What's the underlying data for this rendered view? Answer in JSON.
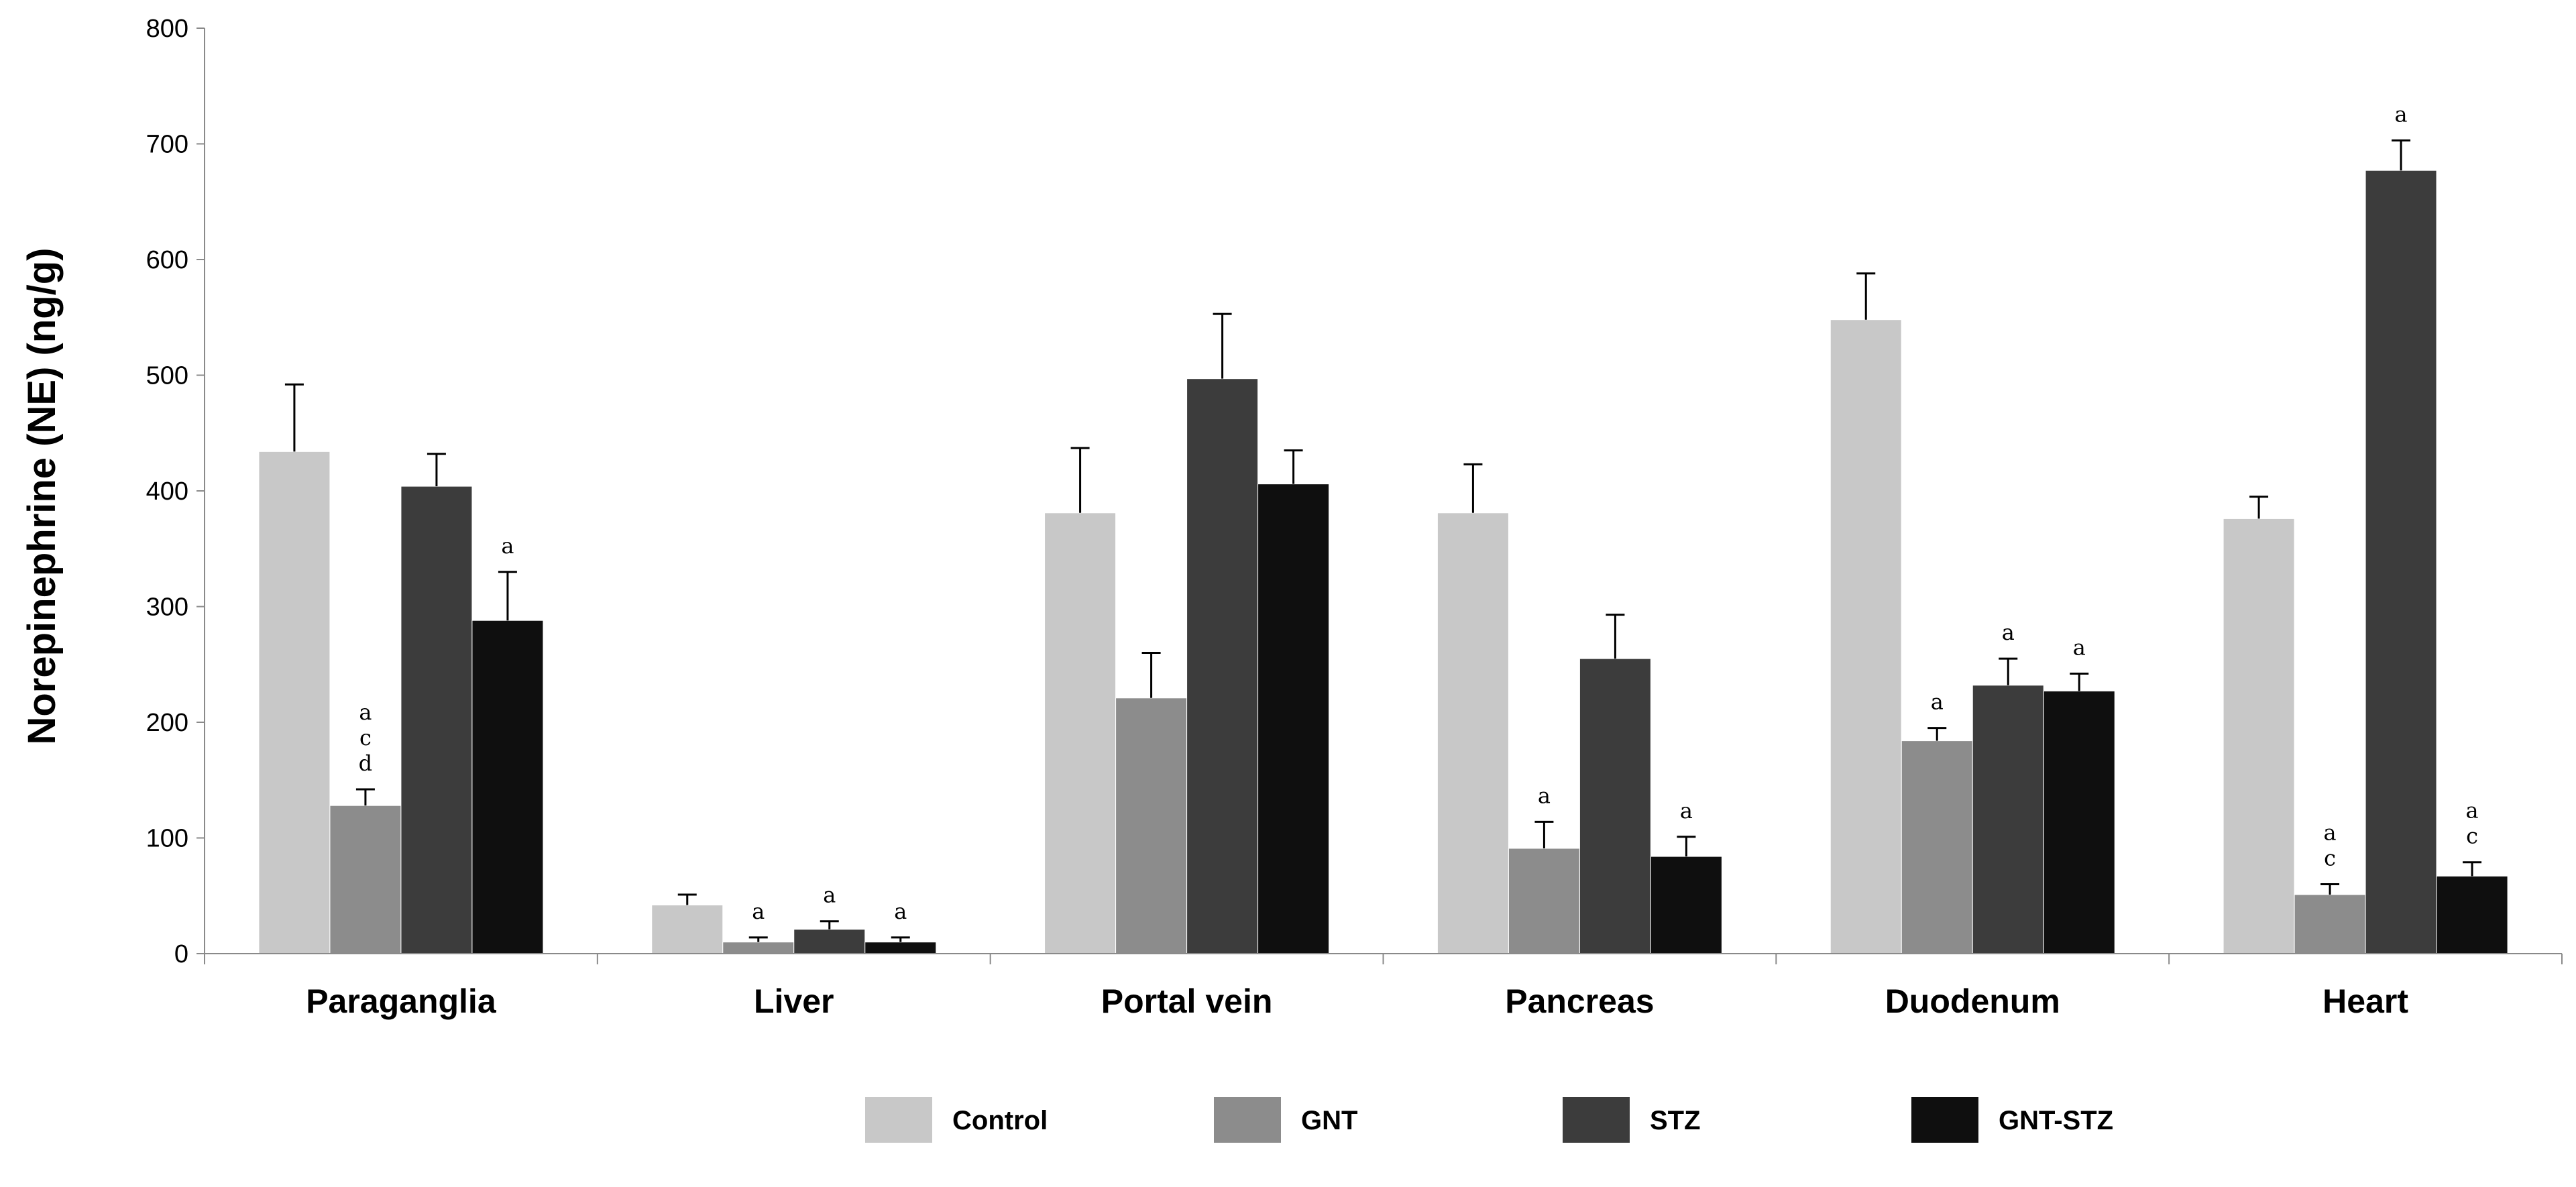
{
  "chart_data": {
    "type": "bar",
    "title": "",
    "xlabel": "",
    "ylabel": "Norepinephrine (NE) (ng/g)",
    "ylim": [
      0,
      800
    ],
    "yticks": [
      "0",
      "100",
      "200",
      "300",
      "400",
      "500",
      "600",
      "700",
      "800"
    ],
    "grid": false,
    "legend_position": "bottom",
    "categories": [
      "Paraganglia",
      "Liver",
      "Portal vein",
      "Pancreas",
      "Duodenum",
      "Heart"
    ],
    "series": [
      {
        "name": "Control",
        "color": "#c8c8c8",
        "values": [
          434,
          42,
          381,
          381,
          548,
          376
        ],
        "errors": [
          58,
          9,
          56,
          42,
          40,
          19
        ],
        "labels": [
          [],
          [],
          [],
          [],
          [],
          []
        ]
      },
      {
        "name": "GNT",
        "color": "#8c8c8c",
        "values": [
          128,
          10,
          221,
          91,
          184,
          51
        ],
        "errors": [
          14,
          4,
          39,
          23,
          11,
          9
        ],
        "labels": [
          [
            "a",
            "c",
            "d"
          ],
          [
            "a"
          ],
          [],
          [
            "a"
          ],
          [
            "a"
          ],
          [
            "a",
            "c"
          ]
        ]
      },
      {
        "name": "STZ",
        "color": "#3c3c3c",
        "values": [
          404,
          21,
          497,
          255,
          232,
          677
        ],
        "errors": [
          28,
          7,
          56,
          38,
          23,
          26
        ],
        "labels": [
          [],
          [
            "a"
          ],
          [],
          [],
          [
            "a"
          ],
          [
            "a"
          ]
        ]
      },
      {
        "name": "GNT-STZ",
        "color": "#0f0f0f",
        "values": [
          288,
          10,
          406,
          84,
          227,
          67
        ],
        "errors": [
          42,
          4,
          29,
          17,
          15,
          12
        ],
        "labels": [
          [
            "a"
          ],
          [
            "a"
          ],
          [],
          [
            "a"
          ],
          [
            "a"
          ],
          [
            "a",
            "c"
          ]
        ]
      }
    ]
  }
}
